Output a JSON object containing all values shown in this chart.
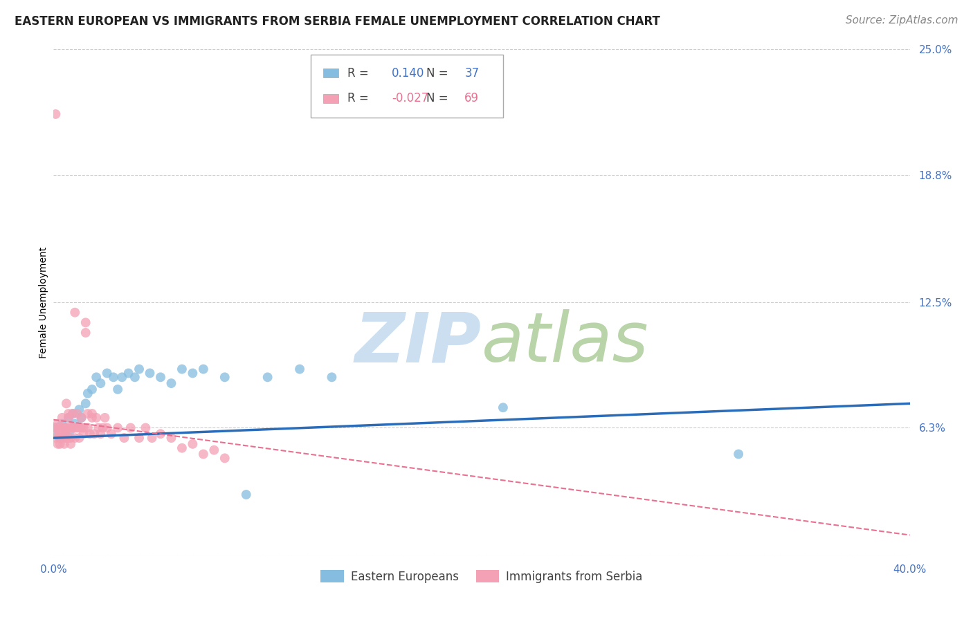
{
  "title": "EASTERN EUROPEAN VS IMMIGRANTS FROM SERBIA FEMALE UNEMPLOYMENT CORRELATION CHART",
  "source": "Source: ZipAtlas.com",
  "ylabel": "Female Unemployment",
  "xmin": 0.0,
  "xmax": 0.4,
  "ymin": 0.0,
  "ymax": 0.25,
  "yticks": [
    0.0,
    0.063,
    0.125,
    0.188,
    0.25
  ],
  "ytick_labels": [
    "",
    "6.3%",
    "12.5%",
    "18.8%",
    "25.0%"
  ],
  "xticks": [
    0.0,
    0.1,
    0.2,
    0.3,
    0.4
  ],
  "xtick_labels": [
    "0.0%",
    "",
    "",
    "",
    "40.0%"
  ],
  "blue_color": "#85bde0",
  "pink_color": "#f4a0b5",
  "blue_line_color": "#2b6cb8",
  "pink_line_color": "#e87090",
  "grid_color": "#c8c8c8",
  "axis_label_color": "#4472c4",
  "background_color": "#ffffff",
  "legend_R1": "0.140",
  "legend_N1": "37",
  "legend_R2": "-0.027",
  "legend_N2": "69",
  "blue_x": [
    0.001,
    0.002,
    0.003,
    0.004,
    0.005,
    0.006,
    0.007,
    0.008,
    0.009,
    0.01,
    0.012,
    0.013,
    0.015,
    0.016,
    0.018,
    0.02,
    0.022,
    0.025,
    0.028,
    0.03,
    0.032,
    0.035,
    0.038,
    0.04,
    0.045,
    0.05,
    0.055,
    0.06,
    0.065,
    0.07,
    0.08,
    0.09,
    0.1,
    0.115,
    0.13,
    0.21,
    0.32
  ],
  "blue_y": [
    0.063,
    0.06,
    0.058,
    0.065,
    0.06,
    0.063,
    0.068,
    0.062,
    0.07,
    0.065,
    0.072,
    0.068,
    0.075,
    0.08,
    0.082,
    0.088,
    0.085,
    0.09,
    0.088,
    0.082,
    0.088,
    0.09,
    0.088,
    0.092,
    0.09,
    0.088,
    0.085,
    0.092,
    0.09,
    0.092,
    0.088,
    0.03,
    0.088,
    0.092,
    0.088,
    0.073,
    0.05
  ],
  "pink_x": [
    0.001,
    0.001,
    0.001,
    0.002,
    0.002,
    0.002,
    0.003,
    0.003,
    0.003,
    0.003,
    0.004,
    0.004,
    0.004,
    0.005,
    0.005,
    0.005,
    0.005,
    0.006,
    0.006,
    0.006,
    0.006,
    0.007,
    0.007,
    0.007,
    0.007,
    0.008,
    0.008,
    0.008,
    0.009,
    0.009,
    0.01,
    0.01,
    0.01,
    0.011,
    0.011,
    0.012,
    0.012,
    0.013,
    0.013,
    0.014,
    0.014,
    0.015,
    0.015,
    0.016,
    0.016,
    0.017,
    0.018,
    0.018,
    0.019,
    0.02,
    0.021,
    0.022,
    0.023,
    0.024,
    0.025,
    0.027,
    0.03,
    0.033,
    0.036,
    0.04,
    0.043,
    0.046,
    0.05,
    0.055,
    0.06,
    0.065,
    0.07,
    0.075,
    0.08
  ],
  "pink_y": [
    0.218,
    0.063,
    0.058,
    0.065,
    0.055,
    0.062,
    0.06,
    0.063,
    0.058,
    0.055,
    0.063,
    0.058,
    0.068,
    0.063,
    0.055,
    0.06,
    0.058,
    0.063,
    0.075,
    0.058,
    0.062,
    0.07,
    0.063,
    0.058,
    0.068,
    0.063,
    0.058,
    0.055,
    0.07,
    0.063,
    0.12,
    0.063,
    0.058,
    0.07,
    0.063,
    0.063,
    0.058,
    0.068,
    0.063,
    0.06,
    0.063,
    0.115,
    0.11,
    0.07,
    0.063,
    0.06,
    0.068,
    0.07,
    0.06,
    0.068,
    0.063,
    0.06,
    0.063,
    0.068,
    0.063,
    0.06,
    0.063,
    0.058,
    0.063,
    0.058,
    0.063,
    0.058,
    0.06,
    0.058,
    0.053,
    0.055,
    0.05,
    0.052,
    0.048
  ],
  "blue_line_x0": 0.0,
  "blue_line_y0": 0.058,
  "blue_line_x1": 0.4,
  "blue_line_y1": 0.075,
  "pink_line_x0": 0.0,
  "pink_line_y0": 0.067,
  "pink_line_x1": 0.4,
  "pink_line_y1": 0.01,
  "title_fontsize": 12,
  "source_fontsize": 11,
  "ylabel_fontsize": 10,
  "tick_fontsize": 11,
  "legend_fontsize": 12,
  "watermark_fontsize": 72
}
